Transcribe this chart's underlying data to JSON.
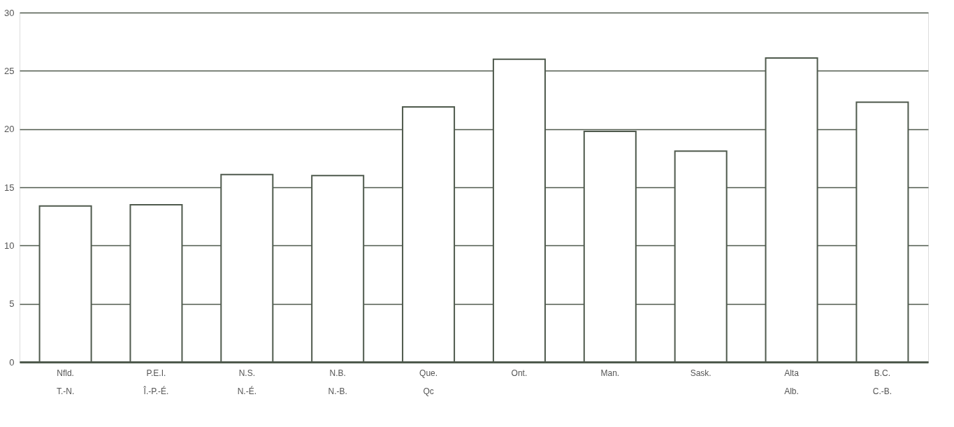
{
  "chart_data": {
    "type": "bar",
    "categories": [
      "Nfld.\nT.-N.",
      "P.E.I.\nÎ.-P.-É.",
      "N.S.\nN.-É.",
      "N.B.\nN.-B.",
      "Que.\nQc",
      "Ont.",
      "Man.",
      "Sask.",
      "Alta\nAlb.",
      "B.C.\nC.-B."
    ],
    "values": [
      13.4,
      13.5,
      16.1,
      16.0,
      21.9,
      26.0,
      19.8,
      18.1,
      26.1,
      22.3
    ],
    "color": "#ffffff",
    "ylim": [
      0,
      30
    ],
    "yticks": [
      0,
      5,
      10,
      15,
      20,
      25,
      30
    ],
    "grid": "y"
  }
}
